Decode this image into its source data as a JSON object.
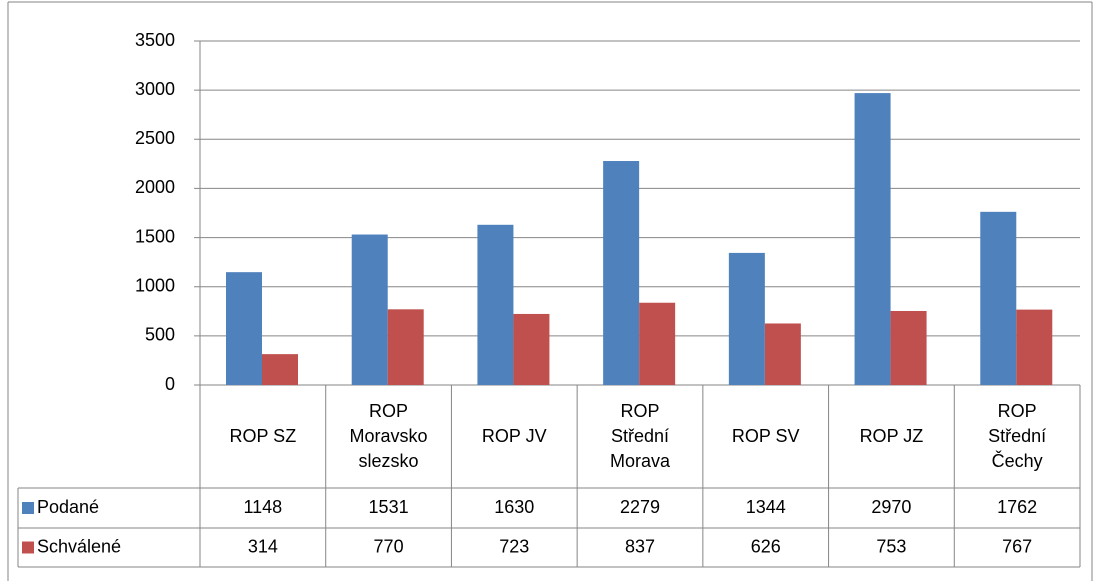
{
  "chart_data": {
    "type": "bar",
    "categories": [
      "ROP SZ",
      "ROP\nMoravsko\nslezsko",
      "ROP JV",
      "ROP\nStřední\nMorava",
      "ROP SV",
      "ROP JZ",
      "ROP\nStřední\nČechy"
    ],
    "series": [
      {
        "name": "Podané",
        "color": "#4f81bd",
        "values": [
          1148,
          1531,
          1630,
          2279,
          1344,
          2970,
          1762
        ]
      },
      {
        "name": "Schválené",
        "color": "#c0504d",
        "values": [
          314,
          770,
          723,
          837,
          626,
          753,
          767
        ]
      }
    ],
    "ylim": [
      0,
      3500
    ],
    "yticks": [
      0,
      500,
      1000,
      1500,
      2000,
      2500,
      3000,
      3500
    ],
    "grid": true
  }
}
